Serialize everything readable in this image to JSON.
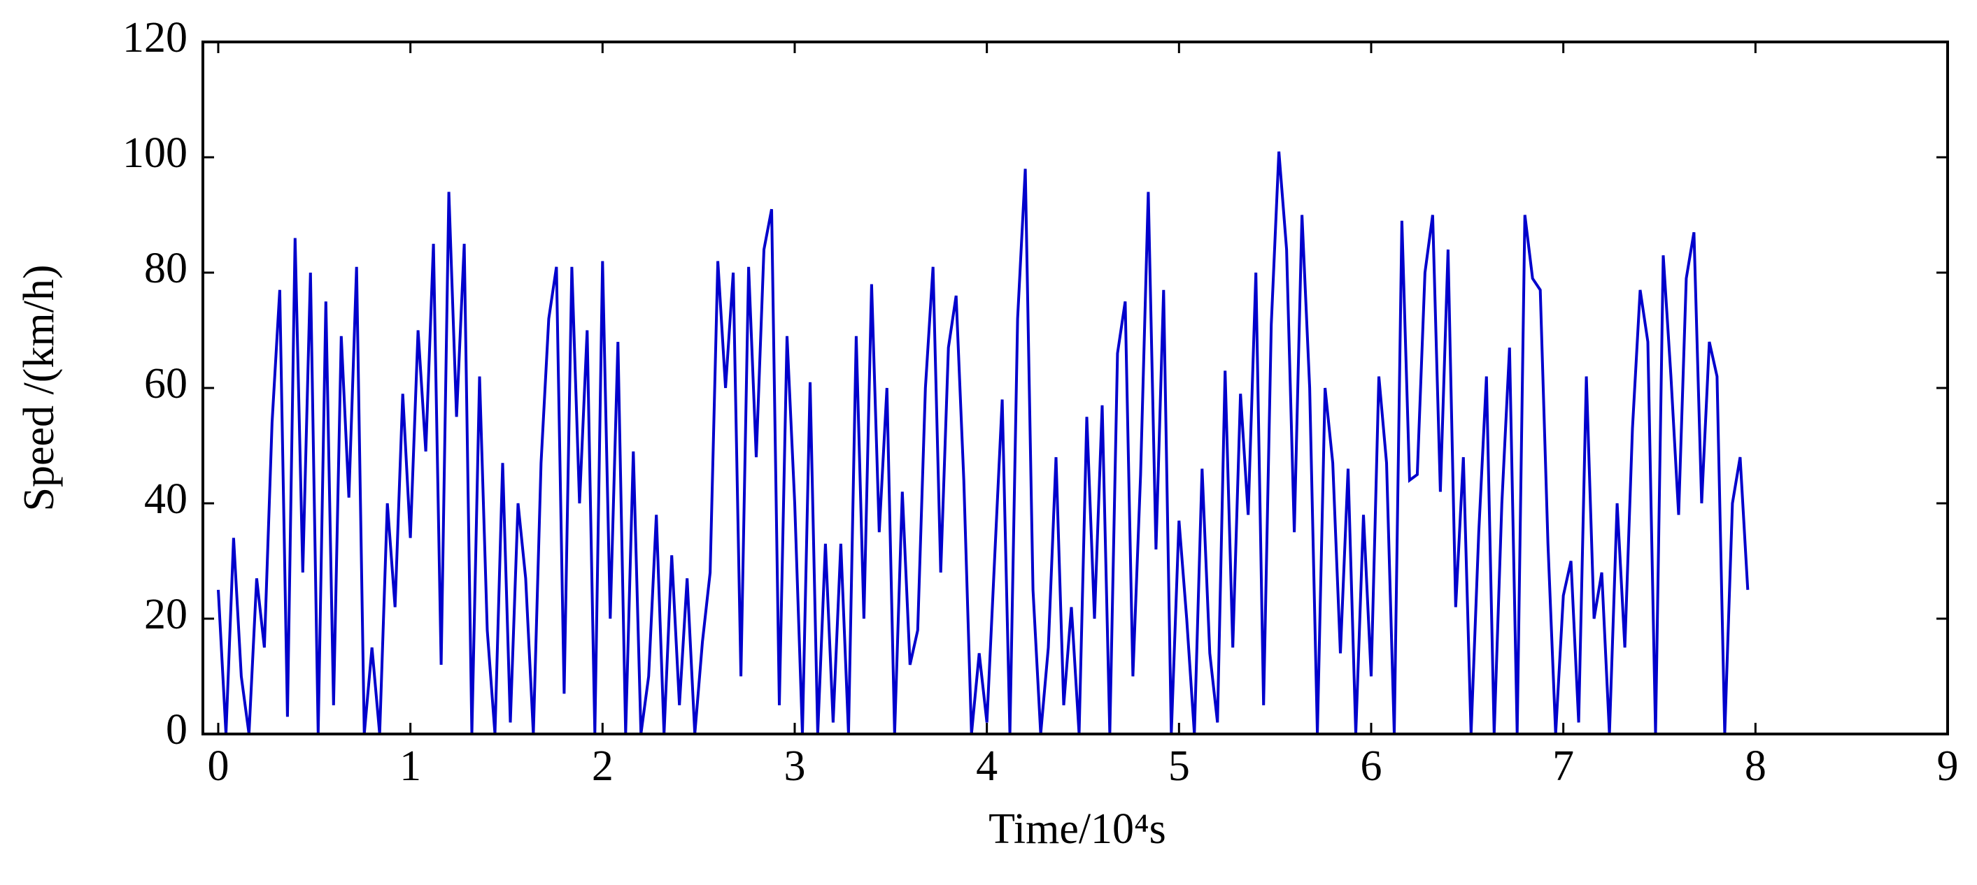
{
  "chart_data": {
    "type": "line",
    "x_label": "Time/10⁴s",
    "y_label": "Speed /(km/h)",
    "x": [
      0,
      0.04,
      0.08,
      0.12,
      0.16,
      0.2,
      0.24,
      0.28,
      0.32,
      0.36,
      0.4,
      0.44,
      0.48,
      0.52,
      0.56,
      0.6,
      0.64,
      0.68,
      0.72,
      0.76,
      0.8,
      0.84,
      0.88,
      0.92,
      0.96,
      1.0,
      1.04,
      1.08,
      1.12,
      1.16,
      1.2,
      1.24,
      1.28,
      1.32,
      1.36,
      1.4,
      1.44,
      1.48,
      1.52,
      1.56,
      1.6,
      1.64,
      1.68,
      1.72,
      1.76,
      1.8,
      1.84,
      1.88,
      1.92,
      1.96,
      2.0,
      2.04,
      2.08,
      2.12,
      2.16,
      2.2,
      2.24,
      2.28,
      2.32,
      2.36,
      2.4,
      2.44,
      2.48,
      2.52,
      2.56,
      2.6,
      2.64,
      2.68,
      2.72,
      2.76,
      2.8,
      2.84,
      2.88,
      2.92,
      2.96,
      3.0,
      3.04,
      3.08,
      3.12,
      3.16,
      3.2,
      3.24,
      3.28,
      3.32,
      3.36,
      3.4,
      3.44,
      3.48,
      3.52,
      3.56,
      3.6,
      3.64,
      3.68,
      3.72,
      3.76,
      3.8,
      3.84,
      3.88,
      3.92,
      3.96,
      4.0,
      4.04,
      4.08,
      4.12,
      4.16,
      4.2,
      4.24,
      4.28,
      4.32,
      4.36,
      4.4,
      4.44,
      4.48,
      4.52,
      4.56,
      4.6,
      4.64,
      4.68,
      4.72,
      4.76,
      4.8,
      4.84,
      4.88,
      4.92,
      4.96,
      5.0,
      5.04,
      5.08,
      5.12,
      5.16,
      5.2,
      5.24,
      5.28,
      5.32,
      5.36,
      5.4,
      5.44,
      5.48,
      5.52,
      5.56,
      5.6,
      5.64,
      5.68,
      5.72,
      5.76,
      5.8,
      5.84,
      5.88,
      5.92,
      5.96,
      6.0,
      6.04,
      6.08,
      6.12,
      6.16,
      6.2,
      6.24,
      6.28,
      6.32,
      6.36,
      6.4,
      6.44,
      6.48,
      6.52,
      6.56,
      6.6,
      6.64,
      6.68,
      6.72,
      6.76,
      6.8,
      6.84,
      6.88,
      6.92,
      6.96,
      7.0,
      7.04,
      7.08,
      7.12,
      7.16,
      7.2,
      7.24,
      7.28,
      7.32,
      7.36,
      7.4,
      7.44,
      7.48,
      7.52,
      7.56,
      7.6,
      7.64,
      7.68,
      7.72,
      7.76,
      7.8,
      7.84,
      7.88,
      7.92,
      7.96
    ],
    "values": [
      25,
      0,
      34,
      10,
      0,
      27,
      15,
      54,
      77,
      3,
      86,
      28,
      80,
      0,
      75,
      5,
      69,
      41,
      81,
      0,
      15,
      0,
      40,
      22,
      59,
      34,
      70,
      49,
      85,
      12,
      94,
      55,
      85,
      0,
      62,
      18,
      0,
      47,
      2,
      40,
      27,
      0,
      47,
      72,
      81,
      7,
      81,
      40,
      70,
      0,
      82,
      20,
      68,
      0,
      49,
      0,
      10,
      38,
      0,
      31,
      5,
      27,
      0,
      16,
      28,
      82,
      60,
      80,
      10,
      81,
      48,
      84,
      91,
      5,
      69,
      40,
      0,
      61,
      0,
      33,
      2,
      33,
      0,
      69,
      20,
      78,
      35,
      60,
      0,
      42,
      12,
      18,
      60,
      81,
      28,
      67,
      76,
      44,
      0,
      14,
      2,
      30,
      58,
      0,
      72,
      98,
      25,
      0,
      15,
      48,
      5,
      22,
      0,
      55,
      20,
      57,
      0,
      66,
      75,
      10,
      45,
      94,
      32,
      77,
      0,
      37,
      20,
      0,
      46,
      14,
      2,
      63,
      15,
      59,
      38,
      80,
      5,
      71,
      101,
      84,
      35,
      90,
      60,
      0,
      60,
      47,
      14,
      46,
      0,
      38,
      10,
      62,
      47,
      0,
      89,
      44,
      45,
      80,
      90,
      42,
      84,
      22,
      48,
      0,
      35,
      62,
      0,
      40,
      67,
      0,
      90,
      79,
      77,
      33,
      0,
      24,
      30,
      2,
      62,
      20,
      28,
      0,
      40,
      15,
      53,
      77,
      68,
      0,
      83,
      62,
      38,
      79,
      87,
      40,
      68,
      62,
      0,
      40,
      48,
      25
    ],
    "color": "#0000cc",
    "xlim": [
      -0.08,
      9
    ],
    "ylim": [
      0,
      120
    ],
    "xticks": [
      0,
      1,
      2,
      3,
      4,
      5,
      6,
      7,
      8,
      9
    ],
    "yticks": [
      0,
      20,
      40,
      60,
      80,
      100,
      120
    ],
    "grid": false
  }
}
